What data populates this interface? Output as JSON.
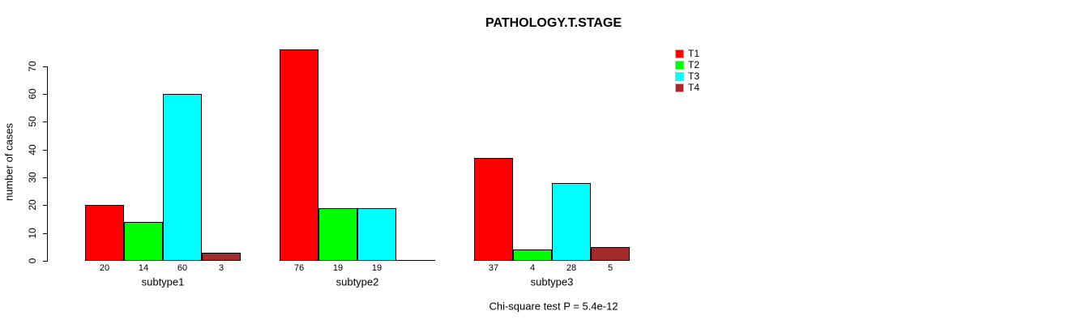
{
  "chart_data": {
    "type": "bar",
    "title": "PATHOLOGY.T.STAGE",
    "ylabel": "number of cases",
    "xlabel": "",
    "categories": [
      "subtype1",
      "subtype2",
      "subtype3"
    ],
    "series": [
      {
        "name": "T1",
        "color": "#FF0000",
        "values": [
          20,
          76,
          37
        ]
      },
      {
        "name": "T2",
        "color": "#00FF00",
        "values": [
          14,
          19,
          4
        ]
      },
      {
        "name": "T3",
        "color": "#00FFFF",
        "values": [
          60,
          19,
          28
        ]
      },
      {
        "name": "T4",
        "color": "#A52A2A",
        "values": [
          3,
          0,
          5
        ]
      }
    ],
    "bar_value_labels": [
      [
        "20",
        "14",
        "60",
        "3"
      ],
      [
        "76",
        "19",
        "19",
        ""
      ],
      [
        "37",
        "4",
        "28",
        "5"
      ]
    ],
    "yticks": [
      0,
      10,
      20,
      30,
      40,
      50,
      60,
      70
    ],
    "ylim": [
      0,
      70
    ],
    "grid": false,
    "legend_position": "top-right",
    "annotation": "Chi-square test P = 5.4e-12",
    "axis_color": "#000000",
    "background": "#FFFFFF"
  }
}
